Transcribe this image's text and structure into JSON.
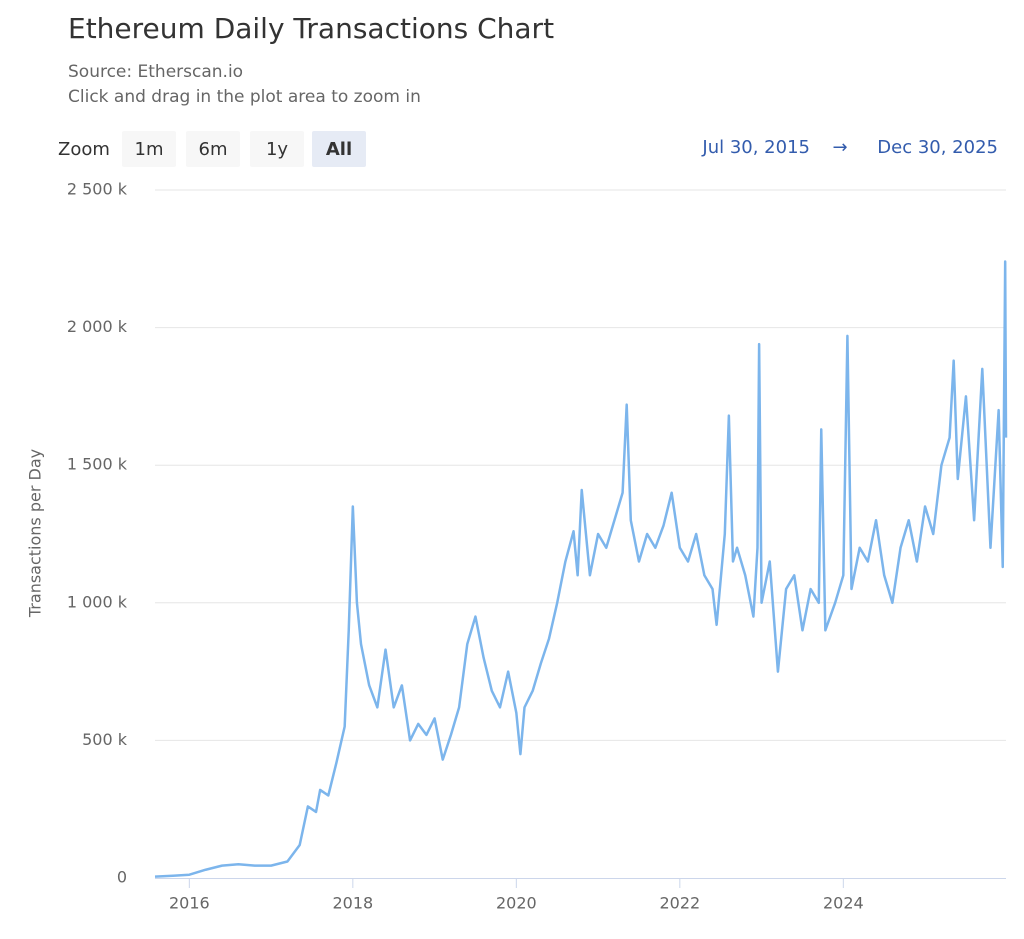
{
  "chart_data": {
    "type": "line",
    "title": "Ethereum Daily Transactions Chart",
    "subtitle": [
      "Source: Etherscan.io",
      "Click and drag in the plot area to zoom in"
    ],
    "zoom_label": "Zoom",
    "zoom_buttons": [
      "1m",
      "6m",
      "1y",
      "All"
    ],
    "selected_zoom": "All",
    "range_from": "Jul 30, 2015",
    "range_arrow": "→",
    "range_to": "Dec 30, 2025",
    "y_label": "Transactions per Day",
    "grid": true,
    "xlim": [
      2015.58,
      2025.99
    ],
    "xticks": [
      2016,
      2018,
      2020,
      2022,
      2024
    ],
    "ylim": [
      0,
      2500000
    ],
    "yticks": [
      {
        "value": 0,
        "label": "0"
      },
      {
        "value": 500000,
        "label": "500 k"
      },
      {
        "value": 1000000,
        "label": "1 000 k"
      },
      {
        "value": 1500000,
        "label": "1 500 k"
      },
      {
        "value": 2000000,
        "label": "2 000 k"
      },
      {
        "value": 2500000,
        "label": "2 500 k"
      }
    ],
    "x": [
      2015.58,
      2015.8,
      2016.0,
      2016.2,
      2016.4,
      2016.6,
      2016.8,
      2017.0,
      2017.2,
      2017.35,
      2017.45,
      2017.55,
      2017.6,
      2017.7,
      2017.8,
      2017.9,
      2017.95,
      2018.0,
      2018.05,
      2018.1,
      2018.2,
      2018.3,
      2018.4,
      2018.5,
      2018.6,
      2018.7,
      2018.8,
      2018.9,
      2019.0,
      2019.1,
      2019.2,
      2019.3,
      2019.4,
      2019.5,
      2019.6,
      2019.7,
      2019.8,
      2019.9,
      2020.0,
      2020.05,
      2020.1,
      2020.2,
      2020.3,
      2020.4,
      2020.5,
      2020.6,
      2020.7,
      2020.75,
      2020.8,
      2020.9,
      2021.0,
      2021.1,
      2021.2,
      2021.3,
      2021.35,
      2021.4,
      2021.5,
      2021.6,
      2021.7,
      2021.8,
      2021.9,
      2022.0,
      2022.1,
      2022.2,
      2022.3,
      2022.4,
      2022.45,
      2022.55,
      2022.6,
      2022.65,
      2022.7,
      2022.8,
      2022.9,
      2022.95,
      2022.97,
      2023.0,
      2023.1,
      2023.2,
      2023.3,
      2023.4,
      2023.5,
      2023.6,
      2023.7,
      2023.73,
      2023.78,
      2023.9,
      2024.0,
      2024.05,
      2024.1,
      2024.2,
      2024.3,
      2024.4,
      2024.5,
      2024.6,
      2024.7,
      2024.8,
      2024.9,
      2025.0,
      2025.1,
      2025.2,
      2025.3,
      2025.35,
      2025.4,
      2025.5,
      2025.6,
      2025.7,
      2025.8,
      2025.9,
      2025.95,
      2025.98,
      2025.99
    ],
    "series": [
      {
        "name": "Transactions per Day",
        "color": "#7cb5ec",
        "values": [
          5000,
          8000,
          12000,
          30000,
          45000,
          50000,
          45000,
          45000,
          60000,
          120000,
          260000,
          240000,
          320000,
          300000,
          420000,
          550000,
          900000,
          1350000,
          1000000,
          850000,
          700000,
          620000,
          830000,
          620000,
          700000,
          500000,
          560000,
          520000,
          580000,
          430000,
          520000,
          620000,
          850000,
          950000,
          800000,
          680000,
          620000,
          750000,
          600000,
          450000,
          620000,
          680000,
          780000,
          870000,
          1000000,
          1150000,
          1260000,
          1100000,
          1410000,
          1100000,
          1250000,
          1200000,
          1300000,
          1400000,
          1720000,
          1300000,
          1150000,
          1250000,
          1200000,
          1280000,
          1400000,
          1200000,
          1150000,
          1250000,
          1100000,
          1050000,
          920000,
          1250000,
          1680000,
          1150000,
          1200000,
          1100000,
          950000,
          1200000,
          1940000,
          1000000,
          1150000,
          750000,
          1050000,
          1100000,
          900000,
          1050000,
          1000000,
          1630000,
          900000,
          1000000,
          1100000,
          1970000,
          1050000,
          1200000,
          1150000,
          1300000,
          1100000,
          1000000,
          1200000,
          1300000,
          1150000,
          1350000,
          1250000,
          1500000,
          1600000,
          1880000,
          1450000,
          1750000,
          1300000,
          1850000,
          1200000,
          1700000,
          1130000,
          2240000,
          1600000
        ]
      }
    ]
  }
}
